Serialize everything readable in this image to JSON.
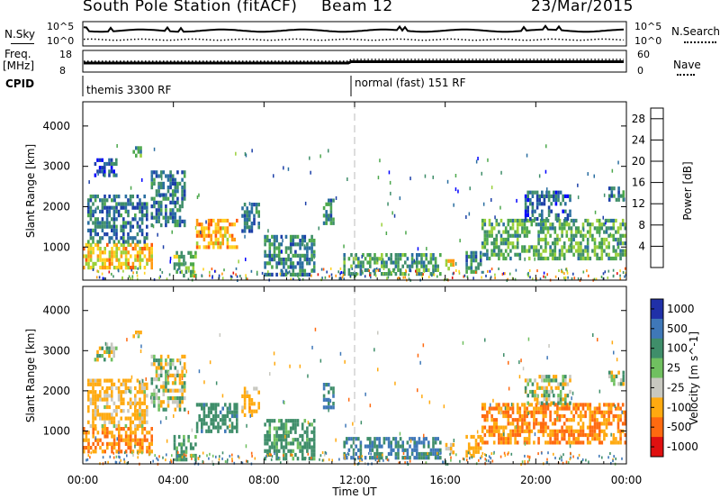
{
  "header": {
    "station": "South Pole Station (fitACF)",
    "beam": "Beam 12",
    "date": "23/Mar/2015"
  },
  "noise_panel": {
    "left_label": "N.Sky",
    "right_label": "N.Search",
    "left_ticks": [
      "10^5",
      "10^0"
    ],
    "right_ticks": [
      "10^5",
      "10^0"
    ]
  },
  "freq_panel": {
    "left_label_line1": "Freq.",
    "left_label_line2": "[MHz]",
    "right_label": "Nave",
    "left_ticks": [
      "18",
      "8"
    ],
    "right_ticks": [
      "60",
      "0"
    ]
  },
  "cpid": {
    "label": "CPID",
    "modes": [
      {
        "text": "themis 3300 RF",
        "start_hour": 0
      },
      {
        "text": "normal (fast) 151 RF",
        "start_hour": 12
      }
    ]
  },
  "chart_data": [
    {
      "type": "heatmap",
      "title": "Power",
      "xlabel": "Time UT",
      "ylabel": "Slant Range [km]",
      "xlim": [
        0,
        24
      ],
      "ylim": [
        180,
        4600
      ],
      "x_ticks": [
        "00:00",
        "04:00",
        "08:00",
        "12:00",
        "16:00",
        "20:00",
        "00:00"
      ],
      "y_ticks": [
        "1000",
        "2000",
        "3000",
        "4000"
      ],
      "colorbar": {
        "label": "Power [dB]",
        "ticks": [
          "4",
          "8",
          "12",
          "16",
          "20",
          "24",
          "28"
        ],
        "range": [
          0,
          30
        ],
        "colors": [
          "#0000ff",
          "#1c3fa8",
          "#2a6ea0",
          "#3f8e6a",
          "#4da84c",
          "#9ad03a",
          "#ffd21f",
          "#ff9a10",
          "#ff5a08",
          "#e01010"
        ]
      },
      "regions": [
        {
          "t": [
            0.0,
            3.0
          ],
          "r": [
            500,
            1100
          ],
          "v": 20
        },
        {
          "t": [
            0.2,
            2.8
          ],
          "r": [
            1100,
            2300
          ],
          "v": 8
        },
        {
          "t": [
            0.5,
            1.5
          ],
          "r": [
            2800,
            3200
          ],
          "v": 7
        },
        {
          "t": [
            2.2,
            2.6
          ],
          "r": [
            3300,
            3500
          ],
          "v": 12
        },
        {
          "t": [
            3.0,
            4.5
          ],
          "r": [
            1500,
            2900
          ],
          "v": 9
        },
        {
          "t": [
            5.0,
            6.8
          ],
          "r": [
            1000,
            1700
          ],
          "v": 22
        },
        {
          "t": [
            4.0,
            5.0
          ],
          "r": [
            300,
            900
          ],
          "v": 14
        },
        {
          "t": [
            7.0,
            7.8
          ],
          "r": [
            1400,
            2100
          ],
          "v": 8
        },
        {
          "t": [
            8.0,
            10.2
          ],
          "r": [
            300,
            1300
          ],
          "v": 10
        },
        {
          "t": [
            10.6,
            11.1
          ],
          "r": [
            1600,
            2200
          ],
          "v": 10
        },
        {
          "t": [
            11.5,
            15.8
          ],
          "r": [
            350,
            850
          ],
          "v": 12
        },
        {
          "t": [
            16.0,
            16.4
          ],
          "r": [
            450,
            700
          ],
          "v": 20
        },
        {
          "t": [
            16.9,
            17.6
          ],
          "r": [
            400,
            900
          ],
          "v": 10
        },
        {
          "t": [
            17.6,
            24.0
          ],
          "r": [
            700,
            1700
          ],
          "v": 13
        },
        {
          "t": [
            19.5,
            21.5
          ],
          "r": [
            1700,
            2400
          ],
          "v": 7
        },
        {
          "t": [
            23.2,
            23.9
          ],
          "r": [
            2200,
            2500
          ],
          "v": 8
        }
      ]
    },
    {
      "type": "heatmap",
      "title": "Velocity",
      "xlabel": "Time UT",
      "ylabel": "Slant Range [km]",
      "xlim": [
        0,
        24
      ],
      "ylim": [
        180,
        4600
      ],
      "x_ticks": [
        "00:00",
        "04:00",
        "08:00",
        "12:00",
        "16:00",
        "20:00",
        "00:00"
      ],
      "y_ticks": [
        "1000",
        "2000",
        "3000",
        "4000"
      ],
      "colorbar": {
        "label": "Velocity [m s^-1]",
        "ticks": [
          "1000",
          "500",
          "100",
          "25",
          "-25",
          "-100",
          "-500",
          "-1000"
        ],
        "bands": [
          "#2030a8",
          "#3f78b8",
          "#3f8e6a",
          "#70c060",
          "#c8c8c0",
          "#ffaa10",
          "#ff6a10",
          "#e01010"
        ]
      },
      "regions": [
        {
          "t": [
            0.0,
            3.0
          ],
          "r": [
            500,
            1100
          ],
          "v": -300
        },
        {
          "t": [
            0.2,
            2.8
          ],
          "r": [
            1100,
            2300
          ],
          "v": -120
        },
        {
          "t": [
            0.5,
            1.5
          ],
          "r": [
            2800,
            3200
          ],
          "v": 0
        },
        {
          "t": [
            2.2,
            2.6
          ],
          "r": [
            3300,
            3500
          ],
          "v": -60
        },
        {
          "t": [
            3.0,
            4.5
          ],
          "r": [
            1500,
            2900
          ],
          "v": 0
        },
        {
          "t": [
            5.0,
            6.8
          ],
          "r": [
            1000,
            1700
          ],
          "v": 200
        },
        {
          "t": [
            4.0,
            5.0
          ],
          "r": [
            300,
            900
          ],
          "v": 120
        },
        {
          "t": [
            7.0,
            7.8
          ],
          "r": [
            1400,
            2100
          ],
          "v": -150
        },
        {
          "t": [
            8.0,
            10.2
          ],
          "r": [
            300,
            1300
          ],
          "v": 150
        },
        {
          "t": [
            10.6,
            11.1
          ],
          "r": [
            1600,
            2200
          ],
          "v": 300
        },
        {
          "t": [
            11.5,
            15.8
          ],
          "r": [
            350,
            850
          ],
          "v": 300
        },
        {
          "t": [
            16.0,
            16.4
          ],
          "r": [
            450,
            700
          ],
          "v": -100
        },
        {
          "t": [
            16.9,
            17.6
          ],
          "r": [
            400,
            900
          ],
          "v": -200
        },
        {
          "t": [
            17.6,
            24.0
          ],
          "r": [
            700,
            1700
          ],
          "v": -300
        },
        {
          "t": [
            19.5,
            21.5
          ],
          "r": [
            1700,
            2400
          ],
          "v": 0
        },
        {
          "t": [
            23.2,
            23.9
          ],
          "r": [
            2200,
            2500
          ],
          "v": 0
        }
      ]
    }
  ]
}
